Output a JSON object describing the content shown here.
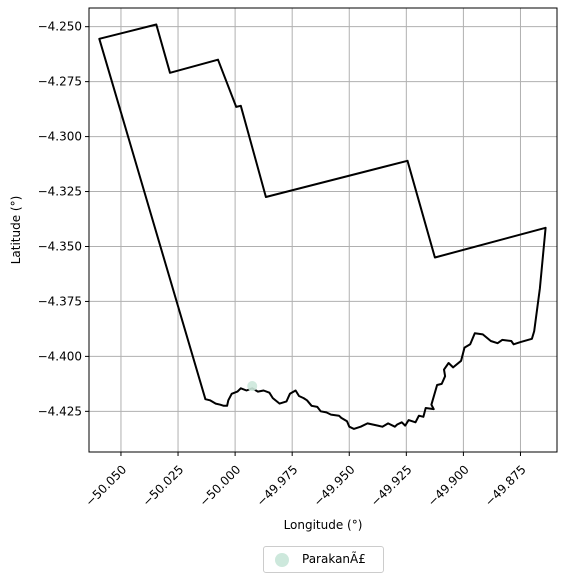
{
  "chart_data": {
    "type": "map",
    "title": "",
    "xlabel": "Longitude (°)",
    "ylabel": "Latitude (°)",
    "xlim": [
      -50.064,
      -49.859
    ],
    "ylim": [
      -4.4435,
      -4.2415
    ],
    "grid": true,
    "x_ticks": [
      -50.05,
      -50.025,
      -50.0,
      -49.975,
      -49.95,
      -49.925,
      -49.9,
      -49.875
    ],
    "x_tick_labels": [
      "−50.050",
      "−50.025",
      "−50.000",
      "−49.975",
      "−49.950",
      "−49.925",
      "−49.900",
      "−49.875"
    ],
    "y_ticks": [
      -4.25,
      -4.275,
      -4.3,
      -4.325,
      -4.35,
      -4.375,
      -4.4,
      -4.425
    ],
    "y_tick_labels": [
      "−4.250",
      "−4.275",
      "−4.300",
      "−4.325",
      "−4.350",
      "−4.375",
      "−4.400",
      "−4.425"
    ],
    "legend": {
      "placement": "below",
      "entries": [
        {
          "label": "ParakanÃ£",
          "color": "#cde8dc"
        }
      ]
    },
    "boundary_color": "#000000",
    "boundary": [
      [
        -50.0595,
        -4.2555
      ],
      [
        -50.0345,
        -4.249
      ],
      [
        -50.0285,
        -4.271
      ],
      [
        -50.0075,
        -4.265
      ],
      [
        -49.9995,
        -4.2865
      ],
      [
        -49.9975,
        -4.286
      ],
      [
        -49.9865,
        -4.3275
      ],
      [
        -49.9245,
        -4.311
      ],
      [
        -49.9125,
        -4.355
      ],
      [
        -49.864,
        -4.3415
      ],
      [
        -49.8665,
        -4.369
      ],
      [
        -49.869,
        -4.3885
      ],
      [
        -49.87,
        -4.392
      ],
      [
        -49.875,
        -4.3935
      ],
      [
        -49.878,
        -4.3945
      ],
      [
        -49.879,
        -4.393
      ],
      [
        -49.883,
        -4.3925
      ],
      [
        -49.885,
        -4.394
      ],
      [
        -49.888,
        -4.393
      ],
      [
        -49.8915,
        -4.39
      ],
      [
        -49.895,
        -4.3895
      ],
      [
        -49.897,
        -4.3945
      ],
      [
        -49.8995,
        -4.396
      ],
      [
        -49.901,
        -4.402
      ],
      [
        -49.9045,
        -4.405
      ],
      [
        -49.9065,
        -4.403
      ],
      [
        -49.9085,
        -4.406
      ],
      [
        -49.908,
        -4.409
      ],
      [
        -49.9095,
        -4.4125
      ],
      [
        -49.9115,
        -4.413
      ],
      [
        -49.914,
        -4.422
      ],
      [
        -49.913,
        -4.424
      ],
      [
        -49.9165,
        -4.4235
      ],
      [
        -49.9175,
        -4.4275
      ],
      [
        -49.9195,
        -4.427
      ],
      [
        -49.921,
        -4.43
      ],
      [
        -49.924,
        -4.429
      ],
      [
        -49.9255,
        -4.4315
      ],
      [
        -49.927,
        -4.43
      ],
      [
        -49.929,
        -4.431
      ],
      [
        -49.93,
        -4.432
      ],
      [
        -49.933,
        -4.4305
      ],
      [
        -49.9355,
        -4.432
      ],
      [
        -49.9375,
        -4.4315
      ],
      [
        -49.942,
        -4.4305
      ],
      [
        -49.945,
        -4.432
      ],
      [
        -49.948,
        -4.433
      ],
      [
        -49.95,
        -4.432
      ],
      [
        -49.951,
        -4.4295
      ],
      [
        -49.9535,
        -4.428
      ],
      [
        -49.9545,
        -4.427
      ],
      [
        -49.958,
        -4.4265
      ],
      [
        -49.96,
        -4.4255
      ],
      [
        -49.9625,
        -4.425
      ],
      [
        -49.964,
        -4.423
      ],
      [
        -49.9665,
        -4.4225
      ],
      [
        -49.9685,
        -4.42
      ],
      [
        -49.97,
        -4.419
      ],
      [
        -49.972,
        -4.418
      ],
      [
        -49.9735,
        -4.4155
      ],
      [
        -49.976,
        -4.417
      ],
      [
        -49.9775,
        -4.4205
      ],
      [
        -49.9805,
        -4.4215
      ],
      [
        -49.9835,
        -4.419
      ],
      [
        -49.985,
        -4.4165
      ],
      [
        -49.9875,
        -4.4155
      ],
      [
        -49.99,
        -4.416
      ],
      [
        -49.9925,
        -4.4145
      ],
      [
        -49.995,
        -4.4155
      ],
      [
        -49.9975,
        -4.4145
      ],
      [
        -49.999,
        -4.416
      ],
      [
        -50.0015,
        -4.417
      ],
      [
        -50.003,
        -4.42
      ],
      [
        -50.0035,
        -4.4225
      ],
      [
        -50.005,
        -4.4225
      ],
      [
        -50.0065,
        -4.422
      ],
      [
        -50.0085,
        -4.4215
      ],
      [
        -50.011,
        -4.42
      ],
      [
        -50.013,
        -4.4195
      ],
      [
        -50.0595,
        -4.2555
      ]
    ]
  }
}
